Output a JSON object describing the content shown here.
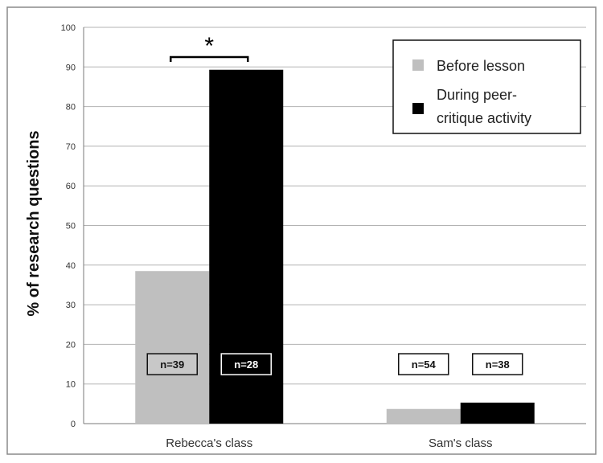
{
  "chart_data": {
    "type": "bar",
    "title": "",
    "xlabel": "",
    "ylabel": "% of research questions",
    "ylim": [
      0,
      100
    ],
    "yticks": [
      0,
      10,
      20,
      30,
      40,
      50,
      60,
      70,
      80,
      90,
      100
    ],
    "grid": true,
    "legend_position": "top-right",
    "categories": [
      "Rebecca's class",
      "Sam's class"
    ],
    "series": [
      {
        "name": "Before lesson",
        "color": "#bfbfbf",
        "values": [
          38.5,
          3.7
        ],
        "n_labels": [
          "n=39",
          "n=54"
        ]
      },
      {
        "name": "During peer-critique activity",
        "legend_lines": [
          "During peer-",
          "critique activity"
        ],
        "color": "#000000",
        "values": [
          89.3,
          5.3
        ],
        "n_labels": [
          "n=28",
          "n=38"
        ]
      }
    ],
    "annotations": [
      {
        "text": "*",
        "category": "Rebecca's class",
        "value": 92.5
      }
    ]
  }
}
